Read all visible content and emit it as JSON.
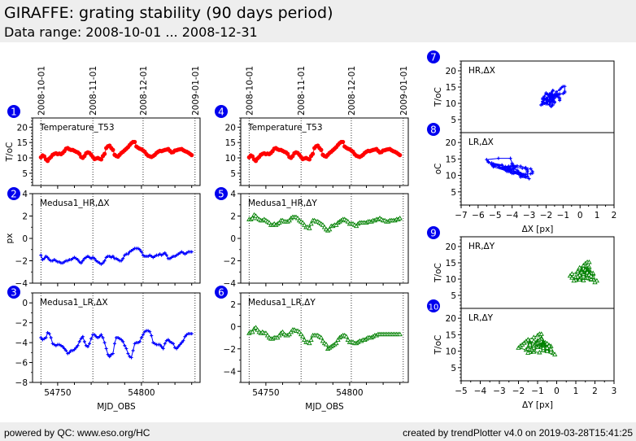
{
  "header": {
    "title": "GIRAFFE: grating stability (90 days period)",
    "subtitle": "Data range: 2008-10-01 ... 2008-12-31"
  },
  "footer": {
    "left": "powered by QC: www.eso.org/HC",
    "right": "created by trendPlotter v4.0 on 2019-03-28T15:41:25"
  },
  "colors": {
    "marker_badge": "#0000ee",
    "temperature": "#ff0000",
    "delta_x": "#0000ff",
    "delta_y": "#008000"
  },
  "chart_data": [
    {
      "id": 1,
      "type": "line",
      "column": "left",
      "label": "Temperature_T53",
      "ylabel": "T/oC",
      "xlim": [
        54735,
        54835
      ],
      "ylim": [
        1,
        23
      ],
      "yticks": [
        5,
        10,
        15,
        20
      ],
      "date_lines": [
        {
          "mjd": 54740,
          "label": "2008-10-01"
        },
        {
          "mjd": 54771,
          "label": "2008-11-01"
        },
        {
          "mjd": 54801,
          "label": "2008-12-01"
        },
        {
          "mjd": 54832,
          "label": "2009-01-01"
        }
      ],
      "color_key": "temperature",
      "marker": "circle",
      "x": [
        54740,
        54741,
        54742,
        54743,
        54744,
        54745,
        54746,
        54747,
        54748,
        54749,
        54750,
        54751,
        54752,
        54753,
        54754,
        54755,
        54756,
        54757,
        54758,
        54759,
        54760,
        54761,
        54762,
        54763,
        54764,
        54765,
        54766,
        54767,
        54768,
        54769,
        54770,
        54771,
        54772,
        54773,
        54774,
        54775,
        54776,
        54777,
        54778,
        54779,
        54780,
        54781,
        54782,
        54783,
        54784,
        54785,
        54786,
        54787,
        54788,
        54789,
        54790,
        54791,
        54792,
        54793,
        54794,
        54795,
        54796,
        54797,
        54798,
        54799,
        54800,
        54801,
        54802,
        54803,
        54804,
        54805,
        54806,
        54807,
        54808,
        54809,
        54810,
        54811,
        54812,
        54813,
        54814,
        54815,
        54816,
        54817,
        54818,
        54819,
        54820,
        54821,
        54822,
        54823,
        54824,
        54825,
        54826,
        54827,
        54828,
        54829,
        54830
      ],
      "y": [
        10.2,
        10.8,
        10.5,
        9.5,
        9.0,
        9.8,
        10.3,
        11.0,
        11.3,
        11.5,
        11.2,
        11.4,
        11.2,
        11.6,
        12.2,
        13.0,
        13.2,
        12.8,
        12.6,
        12.6,
        12.3,
        12.0,
        11.8,
        11.3,
        10.3,
        10.0,
        10.6,
        11.5,
        11.8,
        11.6,
        11.0,
        10.3,
        9.6,
        9.8,
        10.0,
        9.7,
        9.5,
        10.6,
        11.3,
        13.2,
        13.8,
        14.0,
        13.2,
        12.6,
        11.0,
        10.6,
        10.4,
        11.0,
        11.6,
        12.0,
        12.5,
        13.0,
        13.5,
        14.2,
        14.8,
        15.2,
        15.2,
        13.7,
        13.3,
        13.0,
        12.8,
        12.4,
        12.0,
        11.2,
        10.7,
        10.5,
        10.3,
        10.6,
        11.0,
        11.6,
        12.0,
        12.3,
        12.2,
        12.4,
        12.6,
        12.7,
        12.9,
        12.3,
        11.8,
        11.9,
        12.4,
        12.5,
        12.7,
        12.8,
        12.9,
        12.5,
        12.2,
        12.0,
        11.7,
        11.3,
        10.9
      ]
    },
    {
      "id": 2,
      "type": "line",
      "column": "left",
      "label": "Medusa1_HR,ΔX",
      "ylabel": "px",
      "xlim": [
        54735,
        54835
      ],
      "ylim": [
        -4,
        4
      ],
      "yticks": [
        -4,
        -2,
        0,
        2,
        4
      ],
      "color_key": "delta_x",
      "marker": "plus",
      "x": [
        54740,
        54741,
        54742,
        54743,
        54744,
        54745,
        54746,
        54747,
        54748,
        54749,
        54750,
        54751,
        54752,
        54753,
        54754,
        54755,
        54756,
        54757,
        54758,
        54759,
        54760,
        54761,
        54762,
        54763,
        54764,
        54765,
        54766,
        54767,
        54768,
        54769,
        54770,
        54771,
        54772,
        54773,
        54774,
        54775,
        54776,
        54777,
        54778,
        54779,
        54780,
        54781,
        54782,
        54783,
        54784,
        54785,
        54786,
        54787,
        54788,
        54789,
        54790,
        54791,
        54792,
        54793,
        54794,
        54795,
        54796,
        54797,
        54798,
        54799,
        54800,
        54801,
        54802,
        54803,
        54804,
        54805,
        54806,
        54807,
        54808,
        54809,
        54810,
        54811,
        54812,
        54813,
        54814,
        54815,
        54816,
        54817,
        54818,
        54819,
        54820,
        54821,
        54822,
        54823,
        54824,
        54825,
        54826,
        54827,
        54828,
        54829,
        54830
      ],
      "y": [
        -1.5,
        -1.9,
        -1.8,
        -1.6,
        -1.7,
        -1.9,
        -2.0,
        -2.0,
        -1.9,
        -2.0,
        -2.1,
        -2.1,
        -2.2,
        -2.2,
        -2.1,
        -2.0,
        -2.0,
        -1.9,
        -1.9,
        -1.8,
        -1.7,
        -1.8,
        -1.9,
        -2.1,
        -2.2,
        -2.0,
        -1.8,
        -1.7,
        -1.6,
        -1.7,
        -1.8,
        -1.7,
        -1.8,
        -2.0,
        -2.1,
        -2.2,
        -2.3,
        -2.2,
        -2.0,
        -1.7,
        -1.6,
        -1.6,
        -1.7,
        -1.6,
        -1.8,
        -1.8,
        -1.9,
        -2.0,
        -2.0,
        -1.8,
        -1.5,
        -1.4,
        -1.4,
        -1.2,
        -1.1,
        -1.0,
        -0.9,
        -0.9,
        -0.9,
        -1.0,
        -1.2,
        -1.5,
        -1.6,
        -1.6,
        -1.6,
        -1.5,
        -1.6,
        -1.7,
        -1.6,
        -1.5,
        -1.5,
        -1.4,
        -1.5,
        -1.4,
        -1.3,
        -1.5,
        -1.8,
        -1.8,
        -1.7,
        -1.6,
        -1.6,
        -1.5,
        -1.4,
        -1.3,
        -1.2,
        -1.3,
        -1.4,
        -1.3,
        -1.2,
        -1.2,
        -1.2
      ]
    },
    {
      "id": 3,
      "type": "line",
      "column": "left",
      "label": "Medusa1_LR,ΔX",
      "ylabel": "",
      "xlim": [
        54735,
        54835
      ],
      "ylim": [
        -8,
        1
      ],
      "yticks": [
        -8,
        -6,
        -4,
        -2,
        0
      ],
      "xlabel": "MJD_OBS",
      "xticks": [
        54750,
        54800
      ],
      "color_key": "delta_x",
      "marker": "plus",
      "x": [
        54740,
        54741,
        54742,
        54743,
        54744,
        54745,
        54746,
        54747,
        54748,
        54749,
        54750,
        54751,
        54752,
        54753,
        54754,
        54755,
        54756,
        54757,
        54758,
        54759,
        54760,
        54761,
        54762,
        54763,
        54764,
        54765,
        54766,
        54767,
        54768,
        54769,
        54770,
        54771,
        54772,
        54773,
        54774,
        54775,
        54776,
        54777,
        54778,
        54779,
        54780,
        54781,
        54782,
        54783,
        54784,
        54785,
        54786,
        54787,
        54788,
        54789,
        54790,
        54791,
        54792,
        54793,
        54794,
        54795,
        54796,
        54797,
        54798,
        54799,
        54800,
        54801,
        54802,
        54803,
        54804,
        54805,
        54806,
        54807,
        54808,
        54809,
        54810,
        54811,
        54812,
        54813,
        54814,
        54815,
        54816,
        54817,
        54818,
        54819,
        54820,
        54821,
        54822,
        54823,
        54824,
        54825,
        54826,
        54827,
        54828,
        54829,
        54830
      ],
      "y": [
        -3.5,
        -3.7,
        -3.6,
        -3.5,
        -3.0,
        -3.1,
        -3.5,
        -4.1,
        -4.2,
        -4.3,
        -4.2,
        -4.2,
        -4.3,
        -4.4,
        -4.6,
        -4.8,
        -5.1,
        -5.0,
        -4.8,
        -4.8,
        -4.7,
        -4.5,
        -4.3,
        -3.9,
        -3.6,
        -3.4,
        -3.9,
        -4.3,
        -4.4,
        -4.1,
        -3.6,
        -3.2,
        -3.2,
        -3.4,
        -3.5,
        -3.4,
        -3.2,
        -3.5,
        -4.0,
        -4.6,
        -5.2,
        -5.4,
        -5.2,
        -5.1,
        -4.1,
        -3.5,
        -3.5,
        -3.6,
        -3.7,
        -3.9,
        -4.3,
        -4.6,
        -5.1,
        -5.4,
        -5.5,
        -4.8,
        -4.1,
        -4.0,
        -4.0,
        -3.9,
        -3.5,
        -3.2,
        -2.9,
        -2.8,
        -2.8,
        -2.9,
        -3.3,
        -4.0,
        -4.1,
        -4.2,
        -4.2,
        -4.2,
        -4.4,
        -4.6,
        -4.1,
        -3.8,
        -3.7,
        -3.9,
        -4.0,
        -4.1,
        -4.5,
        -4.6,
        -4.4,
        -4.2,
        -4.0,
        -3.8,
        -3.4,
        -3.2,
        -3.1,
        -3.1,
        -3.1
      ]
    },
    {
      "id": 4,
      "type": "line",
      "column": "middle",
      "label": "Temperature_T53",
      "ylabel": "",
      "xlim": [
        54735,
        54835
      ],
      "ylim": [
        1,
        23
      ],
      "yticks": [
        5,
        10,
        15,
        20
      ],
      "date_lines": [
        {
          "mjd": 54740,
          "label": "2008-10-01"
        },
        {
          "mjd": 54771,
          "label": "2008-11-01"
        },
        {
          "mjd": 54801,
          "label": "2008-12-01"
        },
        {
          "mjd": 54832,
          "label": "2009-01-01"
        }
      ],
      "color_key": "temperature",
      "marker": "circle",
      "same_series_as": 1
    },
    {
      "id": 5,
      "type": "line",
      "column": "middle",
      "label": "Medusa1_HR,ΔY",
      "ylabel": "",
      "xlim": [
        54735,
        54835
      ],
      "ylim": [
        -4,
        4
      ],
      "yticks": [
        -4,
        -2,
        0,
        2,
        4
      ],
      "color_key": "delta_y",
      "marker": "triangle",
      "x": [
        54740,
        54741,
        54742,
        54743,
        54744,
        54745,
        54746,
        54747,
        54748,
        54749,
        54750,
        54751,
        54752,
        54753,
        54754,
        54755,
        54756,
        54757,
        54758,
        54759,
        54760,
        54761,
        54762,
        54763,
        54764,
        54765,
        54766,
        54767,
        54768,
        54769,
        54770,
        54771,
        54772,
        54773,
        54774,
        54775,
        54776,
        54777,
        54778,
        54779,
        54780,
        54781,
        54782,
        54783,
        54784,
        54785,
        54786,
        54787,
        54788,
        54789,
        54790,
        54791,
        54792,
        54793,
        54794,
        54795,
        54796,
        54797,
        54798,
        54799,
        54800,
        54801,
        54802,
        54803,
        54804,
        54805,
        54806,
        54807,
        54808,
        54809,
        54810,
        54811,
        54812,
        54813,
        54814,
        54815,
        54816,
        54817,
        54818,
        54819,
        54820,
        54821,
        54822,
        54823,
        54824,
        54825,
        54826,
        54827,
        54828,
        54829,
        54830
      ],
      "y": [
        1.7,
        1.7,
        1.8,
        2.1,
        2.0,
        1.8,
        1.7,
        1.6,
        1.6,
        1.7,
        1.6,
        1.5,
        1.4,
        1.2,
        1.2,
        1.3,
        1.2,
        1.3,
        1.4,
        1.6,
        1.6,
        1.5,
        1.5,
        1.5,
        1.6,
        1.8,
        1.9,
        1.9,
        1.9,
        1.8,
        1.6,
        1.5,
        1.4,
        1.2,
        1.0,
        1.0,
        0.9,
        1.3,
        1.6,
        1.6,
        1.5,
        1.5,
        1.4,
        1.3,
        1.2,
        1.0,
        0.8,
        0.7,
        0.8,
        1.1,
        1.1,
        1.2,
        1.2,
        1.4,
        1.5,
        1.6,
        1.7,
        1.7,
        1.6,
        1.5,
        1.3,
        1.3,
        1.3,
        1.2,
        1.1,
        1.3,
        1.4,
        1.4,
        1.4,
        1.4,
        1.4,
        1.5,
        1.5,
        1.5,
        1.6,
        1.6,
        1.7,
        1.7,
        1.8,
        1.7,
        1.6,
        1.6,
        1.5,
        1.5,
        1.6,
        1.6,
        1.6,
        1.6,
        1.7,
        1.7,
        1.8
      ]
    },
    {
      "id": 6,
      "type": "line",
      "column": "middle",
      "label": "Medusa1_LR,ΔY",
      "ylabel": "",
      "xlim": [
        54735,
        54835
      ],
      "ylim": [
        -5,
        3
      ],
      "yticks": [
        -4,
        -2,
        0,
        2
      ],
      "xlabel": "MJD_OBS",
      "xticks": [
        54750,
        54800
      ],
      "color_key": "delta_y",
      "marker": "triangle",
      "x": [
        54740,
        54741,
        54742,
        54743,
        54744,
        54745,
        54746,
        54747,
        54748,
        54749,
        54750,
        54751,
        54752,
        54753,
        54754,
        54755,
        54756,
        54757,
        54758,
        54759,
        54760,
        54761,
        54762,
        54763,
        54764,
        54765,
        54766,
        54767,
        54768,
        54769,
        54770,
        54771,
        54772,
        54773,
        54774,
        54775,
        54776,
        54777,
        54778,
        54779,
        54780,
        54781,
        54782,
        54783,
        54784,
        54785,
        54786,
        54787,
        54788,
        54789,
        54790,
        54791,
        54792,
        54793,
        54794,
        54795,
        54796,
        54797,
        54798,
        54799,
        54800,
        54801,
        54802,
        54803,
        54804,
        54805,
        54806,
        54807,
        54808,
        54809,
        54810,
        54811,
        54812,
        54813,
        54814,
        54815,
        54816,
        54817,
        54818,
        54819,
        54820,
        54821,
        54822,
        54823,
        54824,
        54825,
        54826,
        54827,
        54828,
        54829,
        54830
      ],
      "y": [
        -0.6,
        -0.5,
        -0.5,
        -0.2,
        -0.1,
        -0.3,
        -0.5,
        -0.6,
        -0.5,
        -0.6,
        -0.6,
        -0.8,
        -1.0,
        -1.1,
        -1.1,
        -1.0,
        -1.0,
        -1.0,
        -0.8,
        -0.6,
        -0.5,
        -0.7,
        -0.8,
        -0.8,
        -0.7,
        -0.5,
        -0.3,
        -0.3,
        -0.4,
        -0.4,
        -0.5,
        -0.7,
        -0.9,
        -1.2,
        -1.4,
        -1.4,
        -1.5,
        -1.2,
        -0.8,
        -0.8,
        -0.8,
        -0.8,
        -0.9,
        -1.0,
        -1.3,
        -1.5,
        -1.6,
        -2.0,
        -1.9,
        -1.8,
        -1.7,
        -1.6,
        -1.5,
        -1.2,
        -1.0,
        -0.9,
        -0.8,
        -0.8,
        -0.9,
        -1.2,
        -1.4,
        -1.4,
        -1.4,
        -1.5,
        -1.5,
        -1.4,
        -1.3,
        -1.3,
        -1.2,
        -1.2,
        -1.1,
        -1.0,
        -1.0,
        -1.0,
        -0.9,
        -0.8,
        -0.8,
        -0.7,
        -0.7,
        -0.7,
        -0.7,
        -0.7,
        -0.7,
        -0.7,
        -0.7,
        -0.7,
        -0.7,
        -0.7,
        -0.7,
        -0.7,
        -0.7
      ]
    },
    {
      "id": 7,
      "type": "scatter",
      "column": "right",
      "label": "HR,ΔX",
      "ylabel": "T/oC",
      "xlim": [
        -7,
        2
      ],
      "ylim": [
        1,
        23
      ],
      "yticks": [
        5,
        10,
        15,
        20
      ],
      "color_key": "delta_x",
      "marker": "plus",
      "x_from_series": 2,
      "y_from_series": 1
    },
    {
      "id": 8,
      "type": "scatter",
      "column": "right",
      "label": "LR,ΔX",
      "ylabel": "oC",
      "xlim": [
        -7,
        2
      ],
      "ylim": [
        1,
        23
      ],
      "yticks": [
        5,
        10,
        15,
        20
      ],
      "xlabel": "ΔX [px]",
      "xticks": [
        -7,
        -6,
        -5,
        -4,
        -3,
        -2,
        -1,
        0,
        1,
        2
      ],
      "color_key": "delta_x",
      "marker": "plus",
      "x_from_series": 3,
      "y_from_series": 1
    },
    {
      "id": 9,
      "type": "scatter",
      "column": "right",
      "label": "HR,ΔY",
      "ylabel": "T/oC",
      "xlim": [
        -5,
        3
      ],
      "ylim": [
        1,
        23
      ],
      "yticks": [
        5,
        10,
        15,
        20
      ],
      "color_key": "delta_y",
      "marker": "triangle",
      "x_from_series": 5,
      "y_from_series": 1
    },
    {
      "id": 10,
      "type": "scatter",
      "column": "right",
      "label": "LR,ΔY",
      "ylabel": "T/oC",
      "xlim": [
        -5,
        3
      ],
      "ylim": [
        1,
        23
      ],
      "yticks": [
        5,
        10,
        15,
        20
      ],
      "xlabel": "ΔY [px]",
      "xticks": [
        -5,
        -4,
        -3,
        -2,
        -1,
        0,
        1,
        2,
        3
      ],
      "color_key": "delta_y",
      "marker": "triangle",
      "x_from_series": 6,
      "y_from_series": 1
    }
  ]
}
